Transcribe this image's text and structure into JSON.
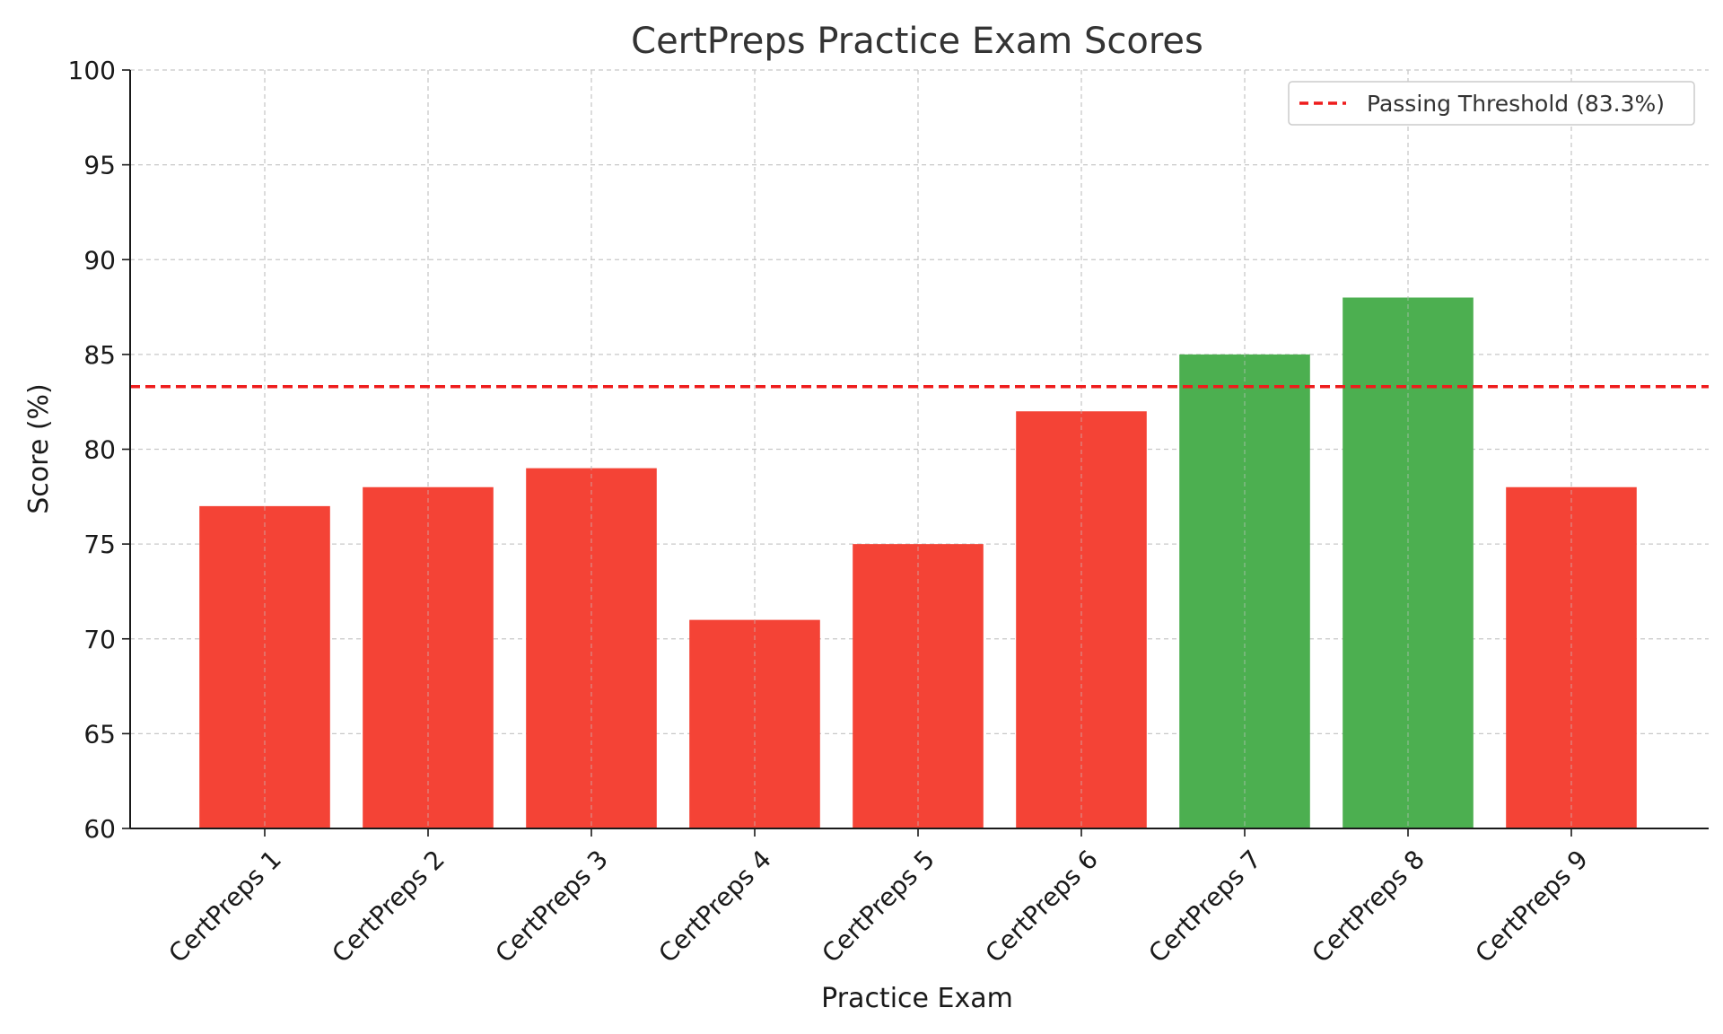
{
  "chart_data": {
    "type": "bar",
    "title": "CertPreps Practice Exam Scores",
    "xlabel": "Practice Exam",
    "ylabel": "Score (%)",
    "categories": [
      "CertPreps 1",
      "CertPreps 2",
      "CertPreps 3",
      "CertPreps 4",
      "CertPreps 5",
      "CertPreps 6",
      "CertPreps 7",
      "CertPreps 8",
      "CertPreps 9"
    ],
    "values": [
      77,
      78,
      79,
      71,
      75,
      82,
      85,
      88,
      78
    ],
    "ylim": [
      60,
      100
    ],
    "yticks": [
      60,
      65,
      70,
      75,
      80,
      85,
      90,
      95,
      100
    ],
    "grid": true,
    "threshold": {
      "value": 83.3,
      "label": "Passing Threshold (83.3%)",
      "color": "#ee1c1c",
      "style": "dashed"
    },
    "colors": {
      "pass": "#4caf50",
      "fail": "#f44336"
    },
    "legend_position": "top-right"
  }
}
